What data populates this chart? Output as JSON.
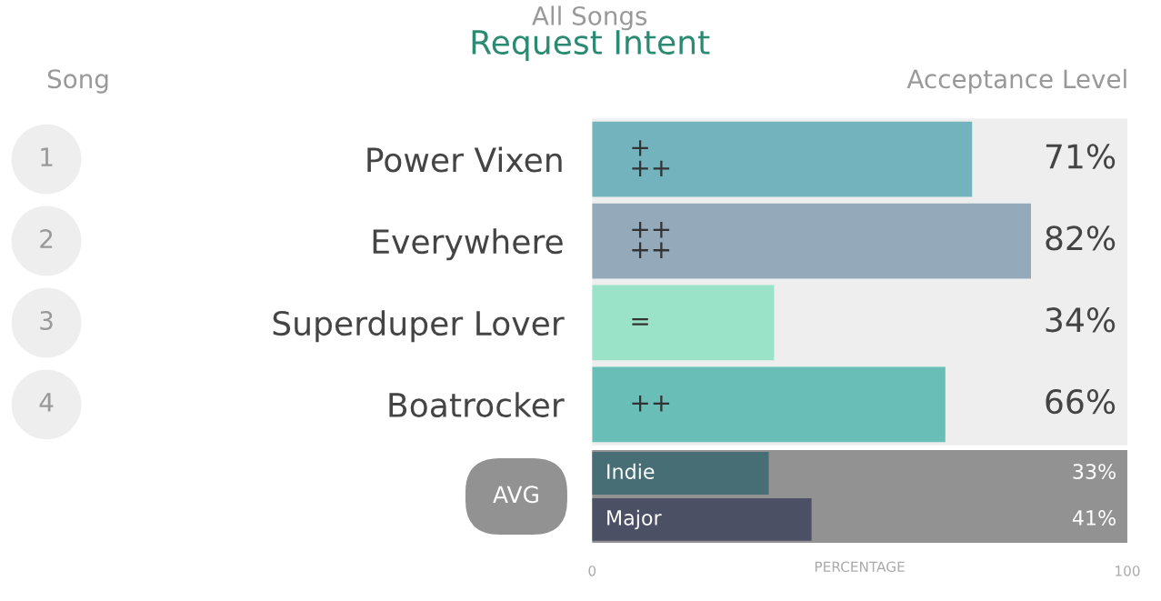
{
  "chart_data": [
    {
      "type": "bar",
      "orientation": "horizontal",
      "title": "All Songs",
      "subtitle": "Request Intent",
      "categories": [
        "Power Vixen",
        "Everywhere",
        "Superduper Lover",
        "Boatrocker"
      ],
      "values": [
        71,
        82,
        34,
        66
      ],
      "colors": [
        "#73b3bd",
        "#94aaba",
        "#9ae2c8",
        "#69bfb8"
      ],
      "value_labels": [
        "71%",
        "82%",
        "34%",
        "66%"
      ],
      "xlim": [
        0,
        100
      ],
      "tick_labels": "y",
      "grid": false,
      "legend": false,
      "annotations": [
        "Song",
        "Acceptance Level",
        "1",
        "2",
        "3",
        "4",
        "+\n++",
        "++\n++",
        "=",
        "++"
      ]
    },
    {
      "type": "bar",
      "orientation": "horizontal",
      "ylabel": "AVG",
      "categories": [
        "Indie",
        "Major"
      ],
      "values": [
        33,
        41
      ],
      "colors": [
        "#466e74",
        "#4b5065"
      ],
      "value_labels": [
        "33%",
        "41%"
      ],
      "xlim": [
        0,
        100
      ],
      "xticks": [
        0,
        100
      ],
      "xlabel": "PERCENTAGE",
      "tick_labels": "x",
      "grid": false,
      "legend": false
    }
  ]
}
